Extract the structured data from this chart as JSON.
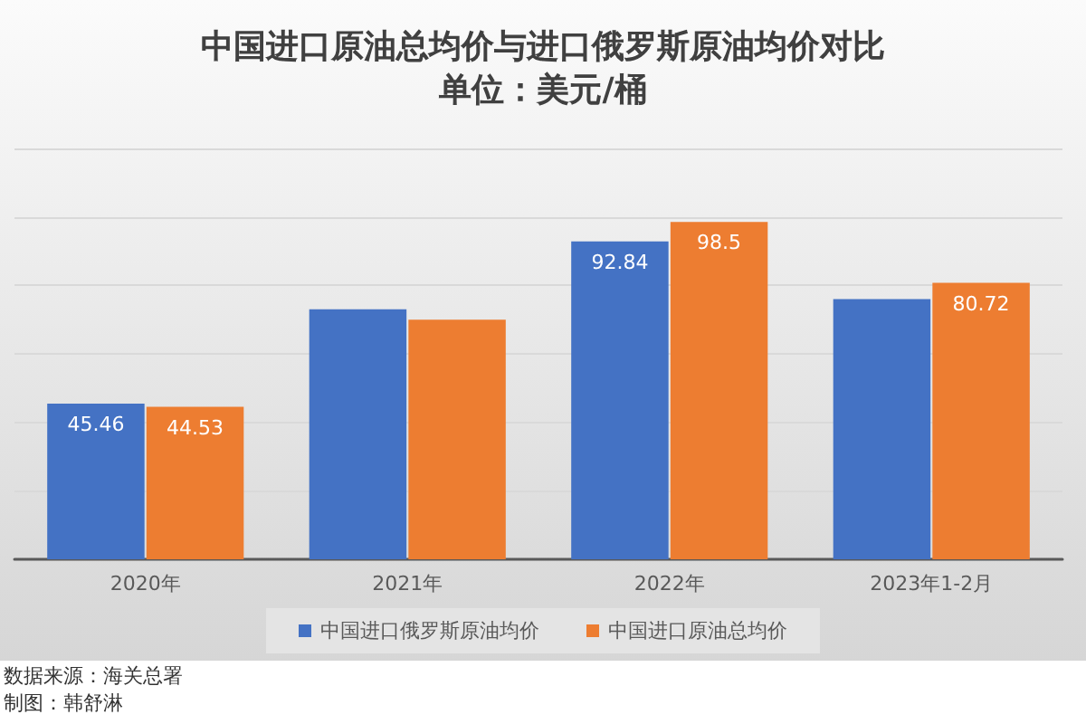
{
  "chart_data": {
    "type": "bar",
    "title": "中国进口原油总均价与进口俄罗斯原油均价对比",
    "subtitle": "单位：美元/桶",
    "categories": [
      "2020年",
      "2021年",
      "2022年",
      "2023年1-2月"
    ],
    "series": [
      {
        "name": "中国进口俄罗斯原油均价",
        "color": "#4472c4",
        "values": [
          45.46,
          73,
          92.84,
          76
        ],
        "value_labels": [
          "45.46",
          null,
          "92.84",
          null
        ]
      },
      {
        "name": "中国进口原油总均价",
        "color": "#ed7d31",
        "values": [
          44.53,
          70,
          98.5,
          80.72
        ],
        "value_labels": [
          "44.53",
          null,
          "98.5",
          "80.72"
        ]
      }
    ],
    "ylim": [
      0,
      120
    ],
    "yticks": [
      0,
      20,
      40,
      60,
      80,
      100,
      120
    ],
    "grid": "y",
    "legend": "bottom",
    "tick_labels": "x",
    "annotations": [
      "数据来源：海关总署",
      "制图：韩舒淋"
    ]
  }
}
